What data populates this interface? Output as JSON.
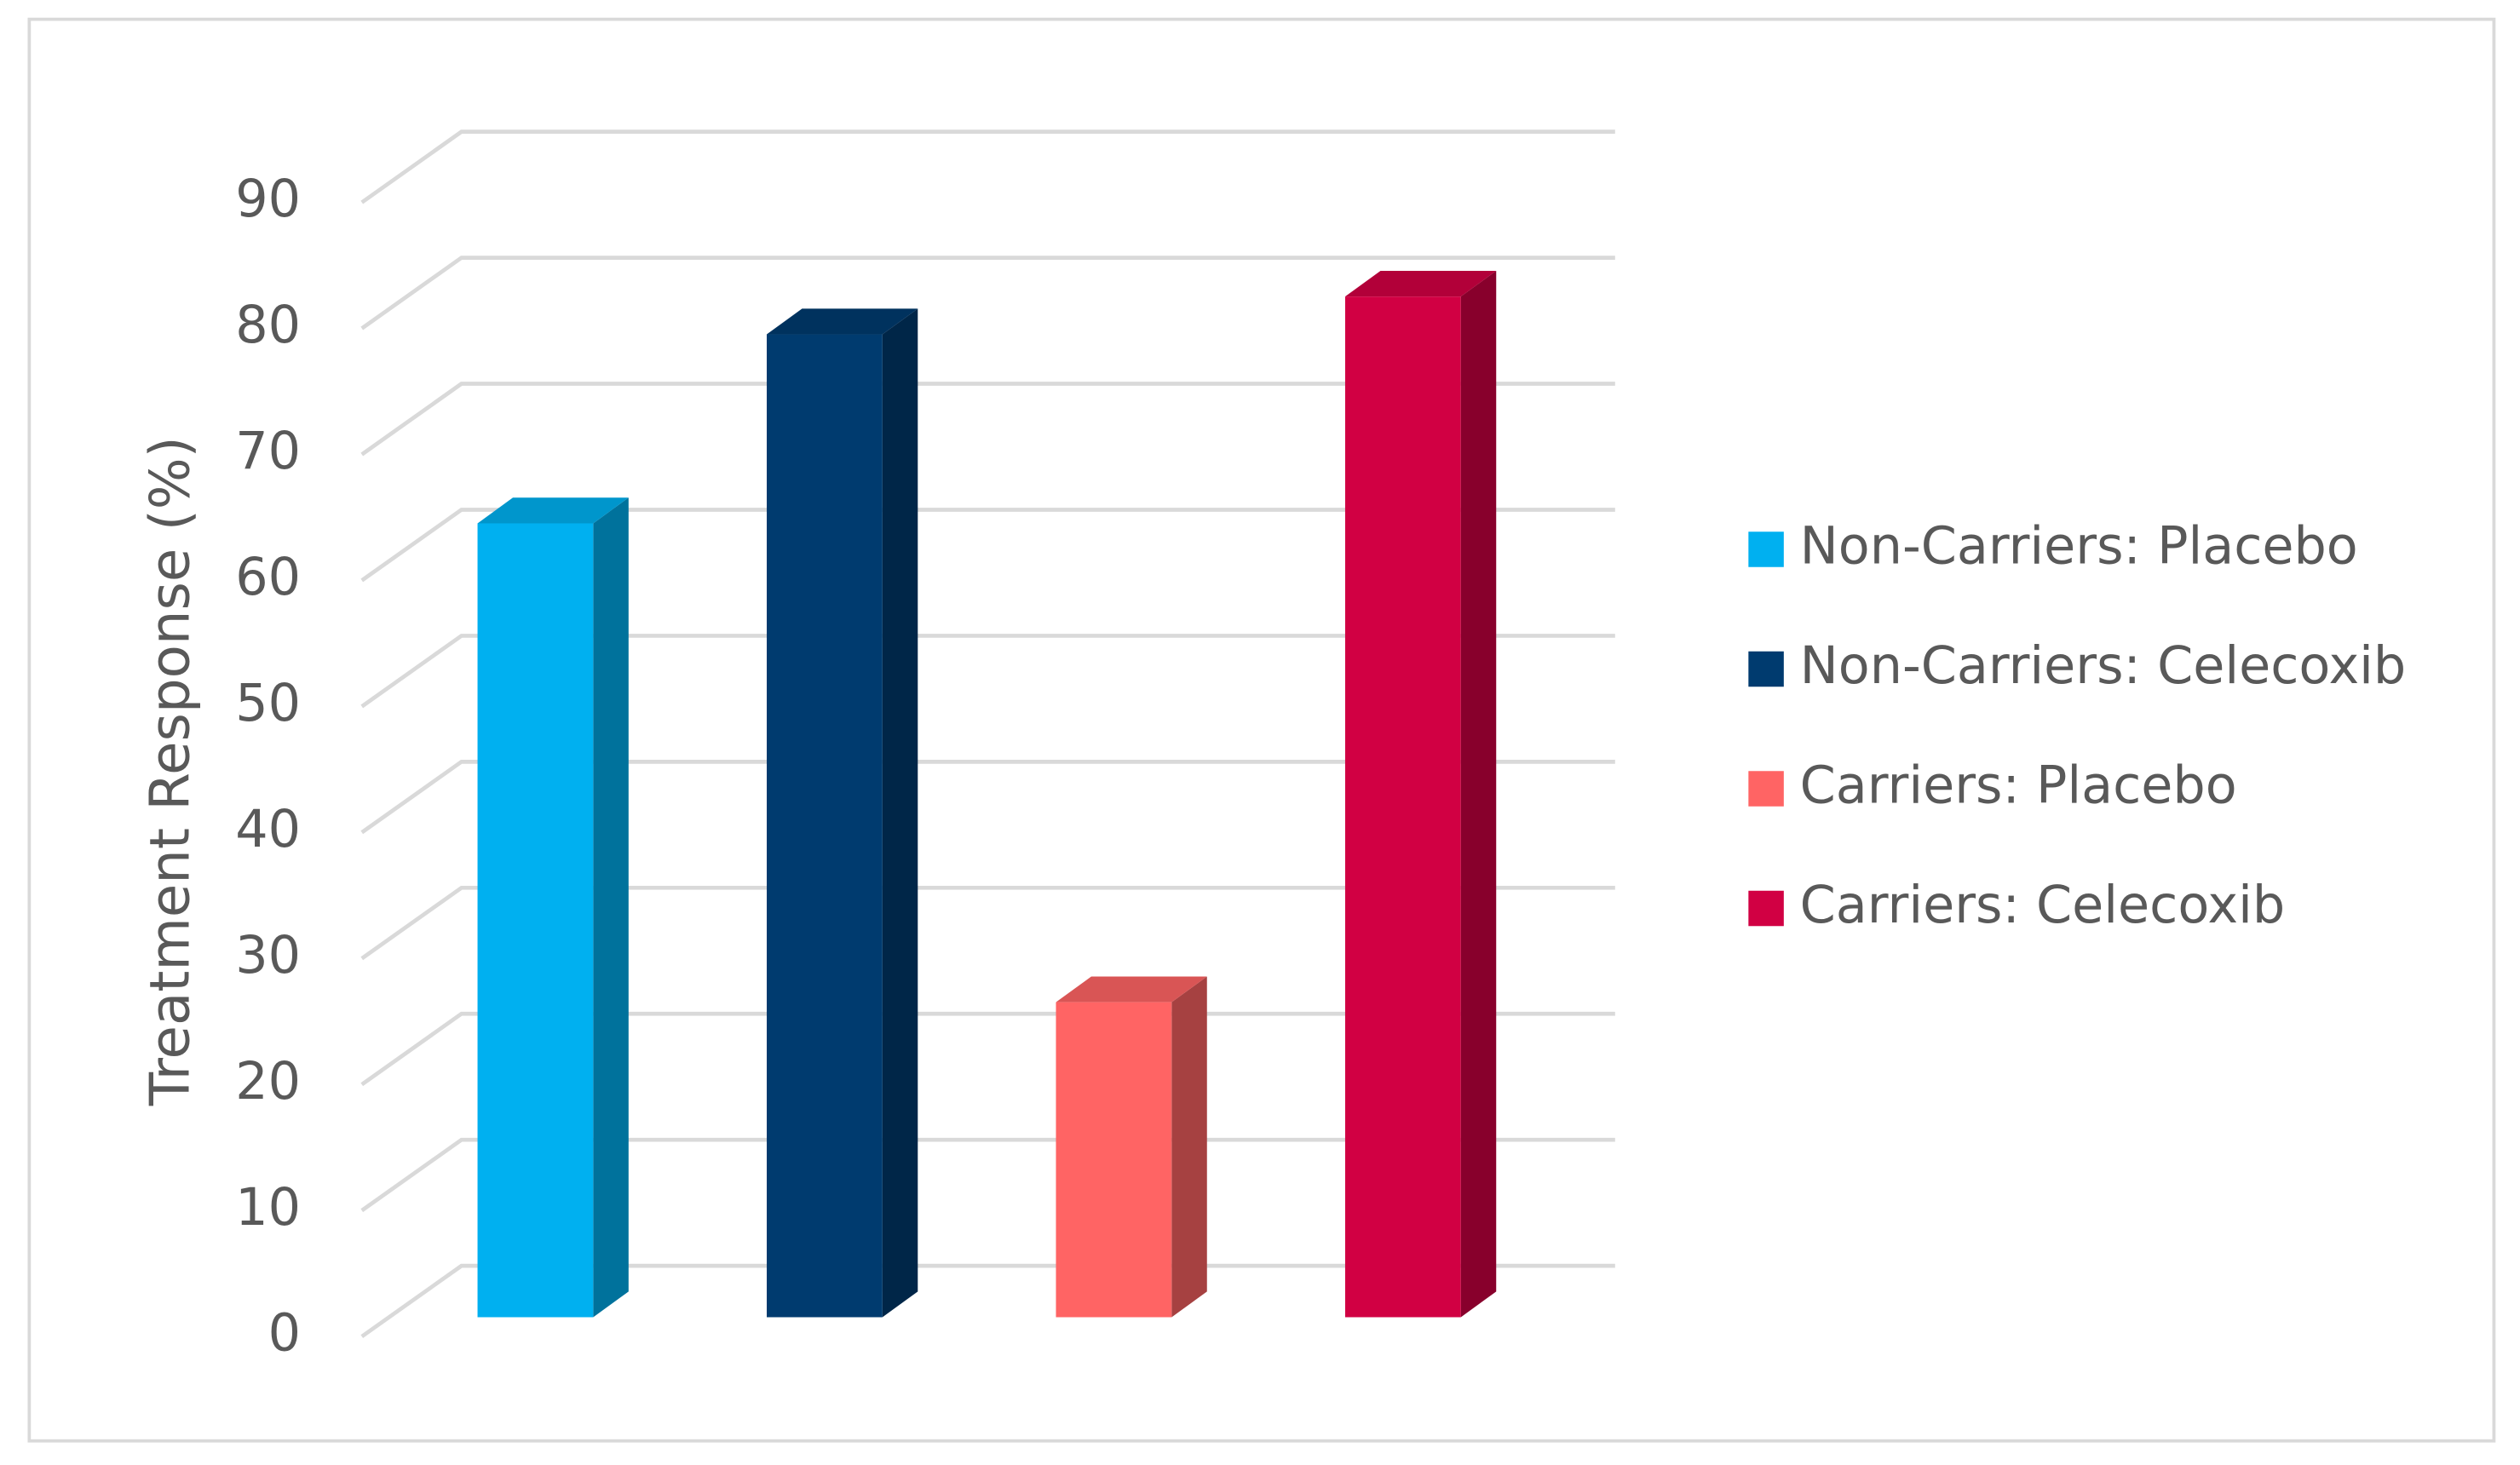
{
  "chart_data": {
    "type": "bar3d",
    "y_label": "Treatment Response (%)",
    "categories": [
      null
    ],
    "series": [
      {
        "name": "Non-Carriers: Placebo",
        "color": "#00b0f0",
        "values": [
          63
        ]
      },
      {
        "name": "Non-Carriers: Celecoxib",
        "color": "#003b6f",
        "values": [
          78
        ]
      },
      {
        "name": "Carriers: Placebo",
        "color": "#ff6464",
        "values": [
          25
        ]
      },
      {
        "name": "Carriers: Celecoxib",
        "color": "#d10043",
        "values": [
          81
        ]
      }
    ],
    "ylim": [
      0,
      90
    ],
    "yticks": [
      0,
      10,
      20,
      30,
      40,
      50,
      60,
      70,
      80,
      90
    ],
    "grid": true,
    "legend": "right"
  }
}
